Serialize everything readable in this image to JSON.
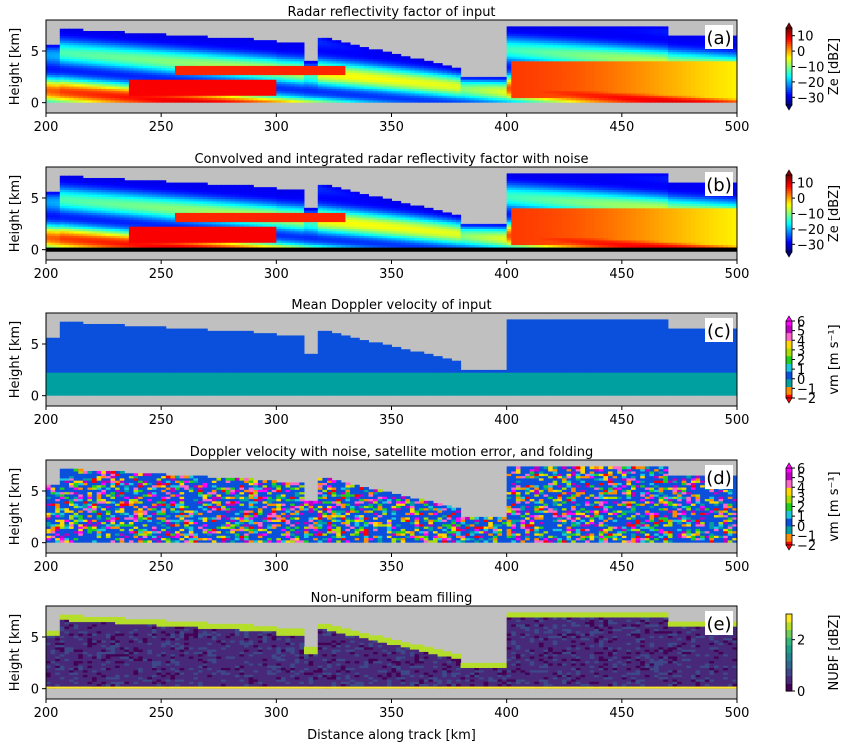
{
  "figure": {
    "xlabel": "Distance along track [km]",
    "ylabel": "Height [km]"
  },
  "chart_data": [
    {
      "type": "heatmap",
      "panel": "(a)",
      "title": "Radar reflectivity factor of input",
      "xlim": [
        200,
        500
      ],
      "ylim": [
        -1,
        8
      ],
      "xticks": [
        200,
        250,
        300,
        350,
        400,
        450,
        500
      ],
      "yticks": [
        0,
        5
      ],
      "ylabel": "Height [km]",
      "colorbar": {
        "label": "Ze [dBZ]",
        "ticks": [
          10,
          0,
          -10,
          -20,
          -30
        ],
        "range": [
          -35,
          15
        ],
        "colormap": "jet"
      },
      "background": "#c0c0c0",
      "cloud": {
        "top_km": 7.2,
        "cloud_free_gap_km": [
          380,
          400
        ],
        "peak_value": 10,
        "minimum_value": -35
      }
    },
    {
      "type": "heatmap",
      "panel": "(b)",
      "title": "Convolved and integrated radar reflectivity factor with noise",
      "xlim": [
        200,
        500
      ],
      "ylim": [
        -1,
        8
      ],
      "xticks": [
        200,
        250,
        300,
        350,
        400,
        450,
        500
      ],
      "yticks": [
        0,
        5
      ],
      "ylabel": "Height [km]",
      "colorbar": {
        "label": "Ze [dBZ]",
        "ticks": [
          10,
          0,
          -10,
          -20,
          -30
        ],
        "range": [
          -35,
          15
        ],
        "colormap": "jet"
      },
      "background": "#c0c0c0",
      "surface_clutter_band_km": [
        -0.2,
        0.2
      ]
    },
    {
      "type": "heatmap",
      "panel": "(c)",
      "title": "Mean Doppler velocity of input",
      "xlim": [
        200,
        500
      ],
      "ylim": [
        -1,
        8
      ],
      "xticks": [
        200,
        250,
        300,
        350,
        400,
        450,
        500
      ],
      "yticks": [
        0,
        5
      ],
      "ylabel": "Height [km]",
      "colorbar": {
        "label": "vm [m s⁻¹]",
        "ticks": [
          6,
          5,
          4,
          3,
          2,
          1,
          0,
          -1,
          -2
        ],
        "range": [
          -2,
          6
        ]
      },
      "background": "#c0c0c0",
      "dominant_values": [
        1,
        0
      ]
    },
    {
      "type": "heatmap",
      "panel": "(d)",
      "title": "Doppler velocity with noise, satellite motion error, and folding",
      "xlim": [
        200,
        500
      ],
      "ylim": [
        -1,
        8
      ],
      "xticks": [
        200,
        250,
        300,
        350,
        400,
        450,
        500
      ],
      "yticks": [
        0,
        5
      ],
      "ylabel": "Height [km]",
      "colorbar": {
        "label": "vm [m s⁻¹]",
        "ticks": [
          6,
          5,
          4,
          3,
          2,
          1,
          0,
          -1,
          -2
        ],
        "range": [
          -2,
          6
        ]
      },
      "background": "#c0c0c0"
    },
    {
      "type": "heatmap",
      "panel": "(e)",
      "title": "Non-uniform beam filling",
      "xlim": [
        200,
        500
      ],
      "ylim": [
        -1,
        8
      ],
      "xticks": [
        200,
        250,
        300,
        350,
        400,
        450,
        500
      ],
      "yticks": [
        0,
        5
      ],
      "ylabel": "Height [km]",
      "xlabel": "Distance along track [km]",
      "colorbar": {
        "label": "NUBF [dBZ]",
        "ticks": [
          2,
          0
        ],
        "range": [
          0,
          3
        ],
        "colormap": "viridis"
      },
      "background": "#c0c0c0"
    }
  ]
}
